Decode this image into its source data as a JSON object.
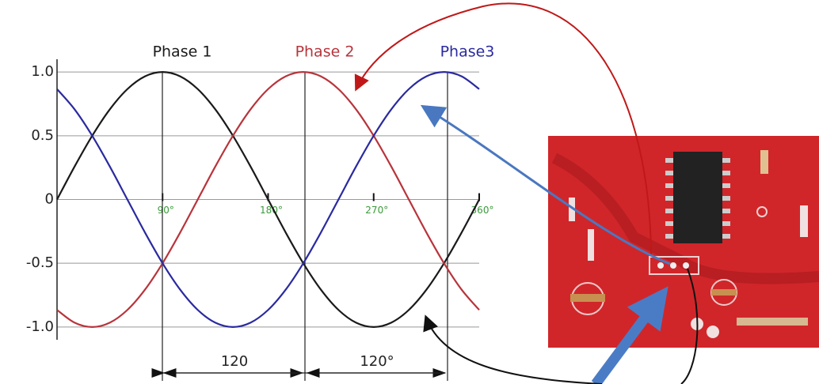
{
  "chart_data": {
    "type": "line",
    "x": [
      0,
      15,
      30,
      45,
      60,
      75,
      90,
      105,
      120,
      135,
      150,
      165,
      180,
      195,
      210,
      225,
      240,
      255,
      270,
      285,
      300,
      315,
      330,
      345,
      360
    ],
    "series": [
      {
        "name": "Phase 1",
        "color": "#1a1a1a",
        "values": [
          0,
          0.259,
          0.5,
          0.707,
          0.866,
          0.966,
          1,
          0.966,
          0.866,
          0.707,
          0.5,
          0.259,
          0,
          -0.259,
          -0.5,
          -0.707,
          -0.866,
          -0.966,
          -1,
          -0.966,
          -0.866,
          -0.707,
          -0.5,
          -0.259,
          0
        ]
      },
      {
        "name": "Phase 2",
        "color": "#b8343c",
        "values": [
          -0.866,
          -0.966,
          -1,
          -0.966,
          -0.866,
          -0.707,
          -0.5,
          -0.259,
          0,
          0.259,
          0.5,
          0.707,
          0.866,
          0.966,
          1,
          0.966,
          0.866,
          0.707,
          0.5,
          0.259,
          0,
          -0.259,
          -0.5,
          -0.707,
          -0.866
        ]
      },
      {
        "name": "Phase3",
        "color": "#2a2aa0",
        "values": [
          0.866,
          0.707,
          0.5,
          0.259,
          0,
          -0.259,
          -0.5,
          -0.707,
          -0.866,
          -0.966,
          -1,
          -0.966,
          -0.866,
          -0.707,
          -0.5,
          -0.259,
          0,
          0.259,
          0.5,
          0.707,
          0.866,
          0.966,
          1,
          0.966,
          0.866
        ]
      }
    ],
    "xlim": [
      0,
      360
    ],
    "xticks": [
      {
        "value": 90,
        "label": "90°"
      },
      {
        "value": 180,
        "label": "180°"
      },
      {
        "value": 270,
        "label": "270°"
      },
      {
        "value": 360,
        "label": "360°"
      }
    ],
    "ylim": [
      -1.1,
      1.1
    ],
    "yticks": [
      {
        "value": 1,
        "label": "1.0"
      },
      0.5,
      0,
      -0.5,
      {
        "value": -1,
        "label": "-1.0"
      }
    ],
    "grid": true,
    "annotations": [
      "120",
      "120°"
    ]
  }
}
